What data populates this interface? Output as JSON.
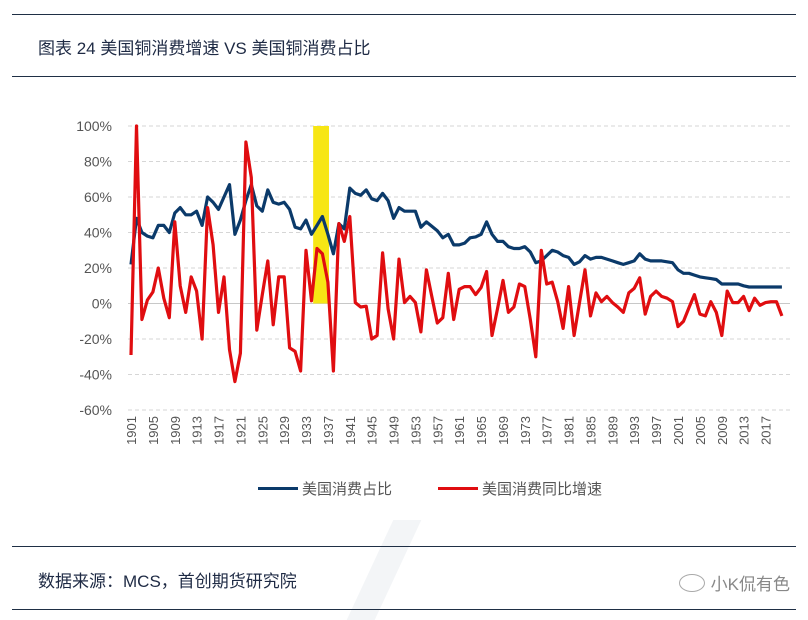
{
  "header": {
    "title": "图表 24 美国铜消费增速 VS 美国铜消费占比"
  },
  "footer": {
    "source": "数据来源：MCS，首创期货研究院",
    "watermark": "小K侃有色",
    "watermark_icon": "wechat-icon"
  },
  "colors": {
    "share": "#0b3a6a",
    "growth": "#e00d10",
    "highlight": "#f7e614",
    "grid": "#d0d0d0"
  },
  "chart_data": {
    "type": "line",
    "title": "图表 24 美国铜消费增速 VS 美国铜消费占比",
    "x_start": 1901,
    "x_end": 2020,
    "x_tick_labels": [
      "1901",
      "1905",
      "1909",
      "1913",
      "1917",
      "1921",
      "1925",
      "1929",
      "1933",
      "1937",
      "1941",
      "1945",
      "1949",
      "1953",
      "1957",
      "1961",
      "1965",
      "1969",
      "1973",
      "1977",
      "1981",
      "1985",
      "1989",
      "1993",
      "1997",
      "2001",
      "2005",
      "2009",
      "2013",
      "2017"
    ],
    "y_tick_labels": [
      "100%",
      "80%",
      "60%",
      "40%",
      "20%",
      "0%",
      "-20%",
      "-40%",
      "-60%"
    ],
    "ylim": [
      -60,
      100
    ],
    "y_unit": "%",
    "grid": true,
    "legend_position": "bottom",
    "highlight_band": {
      "x_from": 1934.3,
      "x_to": 1937.2,
      "y_from": 0,
      "y_to": 100
    },
    "series": [
      {
        "name": "美国消费占比",
        "color": "#0b3a6a",
        "values": [
          22,
          48,
          40,
          38,
          37,
          44,
          44,
          40,
          51,
          54,
          50,
          50,
          52,
          44,
          60,
          57,
          53,
          60,
          67,
          39,
          47,
          58,
          67,
          55,
          52,
          64,
          57,
          56,
          57,
          53,
          43,
          42,
          47,
          39,
          44,
          49,
          39,
          28,
          45,
          42,
          65,
          62,
          61,
          64,
          59,
          58,
          62,
          58,
          48,
          54,
          52,
          52,
          52,
          43,
          46,
          43.5,
          41,
          37,
          39,
          33,
          33,
          34,
          37,
          37.5,
          39,
          46,
          39,
          35,
          35,
          32,
          31,
          31,
          32,
          29,
          23,
          24,
          27,
          30,
          29,
          27,
          26,
          22,
          23.5,
          27,
          25,
          26,
          26,
          25,
          24,
          23,
          22,
          23,
          24,
          28,
          25,
          24,
          24,
          24,
          23.5,
          23,
          19,
          17,
          17,
          16,
          15,
          14.5,
          14,
          13.5,
          11,
          11,
          11,
          11,
          10,
          9.3,
          9.3,
          9.3,
          9.3,
          9.3,
          9.3,
          9.3
        ]
      },
      {
        "name": "美国消费同比增速",
        "color": "#e00d10",
        "values": [
          -29,
          100,
          -9,
          2,
          6.5,
          20,
          3,
          -8,
          46,
          10,
          -5,
          15,
          7,
          -20,
          54,
          33,
          -5,
          15,
          -26,
          -44,
          -28,
          91,
          71,
          -15,
          5,
          24,
          -12,
          15,
          15,
          -25,
          -27,
          -38,
          30,
          1.5,
          31,
          28,
          12,
          -38,
          45,
          35,
          49,
          0.5,
          -2,
          -1.5,
          -20,
          -18,
          28.5,
          -3,
          -20,
          25,
          0.5,
          4,
          0.5,
          -16,
          19,
          4,
          -11,
          -8,
          17,
          -9,
          8,
          9.5,
          9.5,
          5,
          9,
          18,
          -18,
          -3,
          13,
          -5,
          -2,
          11,
          9.5,
          -9,
          -30,
          30,
          11,
          12,
          1,
          -14,
          9.5,
          -18,
          0.5,
          19,
          -7,
          6,
          1,
          4,
          0.5,
          -2,
          -5,
          6,
          8.5,
          14.5,
          -6,
          4,
          7,
          4,
          3,
          1,
          -13,
          -10,
          -2.5,
          5,
          -6,
          -7,
          1,
          -5,
          -18,
          7,
          0.5,
          0.5,
          4,
          -4,
          3,
          -1,
          0.5,
          1,
          1,
          -7
        ]
      }
    ]
  }
}
